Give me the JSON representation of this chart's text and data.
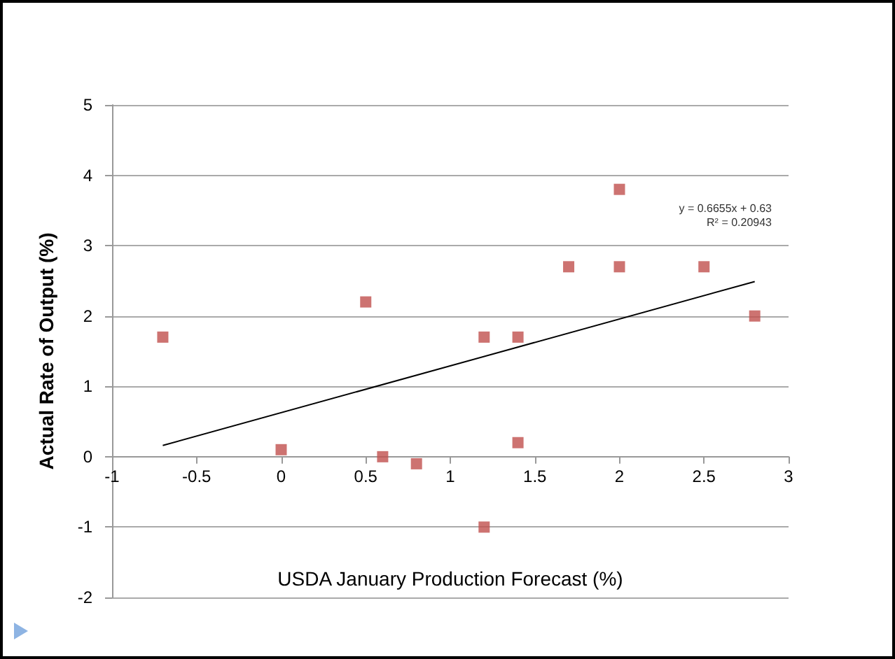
{
  "chart_data": {
    "type": "scatter",
    "xlabel": "USDA January Production Forecast (%)",
    "ylabel": "Actual Rate of Output (%)",
    "annotations": [
      "y = 0.6655x + 0.63",
      "R² = 0.20943"
    ],
    "x": [
      -0.7,
      0,
      0.5,
      0.6,
      0.8,
      1.2,
      1.2,
      1.4,
      1.4,
      1.7,
      2,
      2,
      2.5,
      2.8
    ],
    "series": [
      {
        "color": "#c0504d",
        "marker": "square",
        "values": [
          1.7,
          0.1,
          2.2,
          0,
          -0.1,
          1.7,
          -1,
          1.7,
          0.2,
          2.7,
          3.8,
          2.7,
          2.7,
          2
        ]
      },
      {
        "type": "line",
        "color": "#000000",
        "x": [
          -0.7,
          2.8
        ],
        "values": [
          0.16,
          2.49
        ]
      }
    ],
    "xlim": [
      -1,
      3
    ],
    "xticks": [
      -1,
      -0.5,
      0,
      0.5,
      1,
      1.5,
      2,
      2.5,
      3
    ],
    "ylim": [
      -2,
      5
    ],
    "yticks": [
      -2,
      -1,
      0,
      1,
      2,
      3,
      4,
      5
    ],
    "grid": "y",
    "line_style": "solid"
  }
}
